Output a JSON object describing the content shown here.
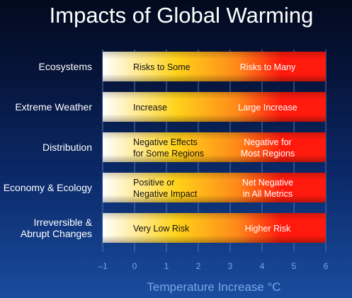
{
  "chart_data": {
    "type": "bar",
    "title": "Impacts of Global Warming",
    "xlabel": "Temperature Increase °C",
    "xlim": [
      -1,
      6
    ],
    "ticks": [
      "–1",
      "0",
      "1",
      "2",
      "3",
      "4",
      "5",
      "6"
    ],
    "grid": true,
    "categories": [
      {
        "label": [
          "Ecosystems"
        ],
        "low": [
          "Risks to Some"
        ],
        "high": [
          "Risks to Many"
        ],
        "range": [
          -1,
          6
        ]
      },
      {
        "label": [
          "Extreme Weather"
        ],
        "low": [
          "Increase"
        ],
        "high": [
          "Large Increase"
        ],
        "range": [
          -1,
          6
        ]
      },
      {
        "label": [
          "Distribution"
        ],
        "low": [
          "Negative Effects",
          "for Some Regions"
        ],
        "high": [
          "Negative for",
          "Most Regions"
        ],
        "range": [
          -1,
          6
        ]
      },
      {
        "label": [
          "Economy & Ecology"
        ],
        "low": [
          "Positive or",
          "Negative Impact"
        ],
        "high": [
          "Net Negative",
          "in All Metrics"
        ],
        "range": [
          -1,
          6
        ]
      },
      {
        "label": [
          "Irreversible &",
          "Abrupt  Changes"
        ],
        "low": [
          "Very Low Risk"
        ],
        "high": [
          "Higher Risk"
        ],
        "range": [
          -1,
          6
        ]
      }
    ],
    "colors": {
      "low": "#ffffff",
      "mid": "#ffd21a",
      "orange": "#ff8a1a",
      "high": "#ff1a0d",
      "grid": "#4f75b5",
      "text_light": "#ffffff",
      "text_dark": "#111111",
      "axis_text": "#7aa6e6"
    }
  }
}
